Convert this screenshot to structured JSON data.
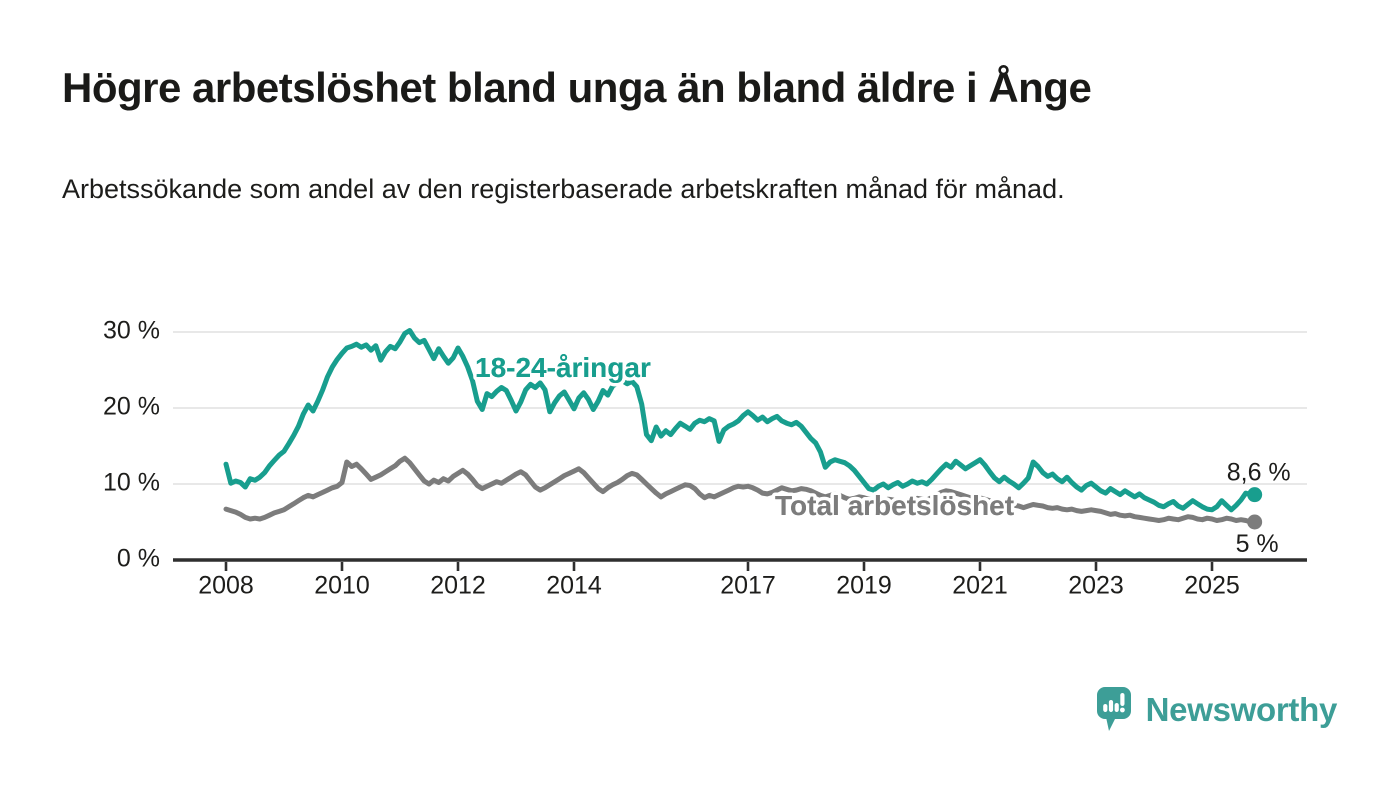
{
  "header": {
    "title": "Högre arbetslöshet bland unga än bland äldre i Ånge",
    "subtitle": "Arbetssökande som andel av den registerbaserade arbetskraften månad för månad."
  },
  "chart_data": {
    "type": "line",
    "title": "Högre arbetslöshet bland unga än bland äldre i Ånge",
    "subtitle": "Arbetssökande som andel av den registerbaserade arbetskraften månad för månad.",
    "unit": "%",
    "x_start": "2008-01",
    "x_end": "2025-09",
    "points_per_year": 12,
    "ylim": [
      0,
      30
    ],
    "grid": "horizontal",
    "legend_position": "inline-labels",
    "y_ticks": [
      {
        "label": "0 %",
        "value": 0
      },
      {
        "label": "10 %",
        "value": 10
      },
      {
        "label": "20 %",
        "value": 20
      },
      {
        "label": "30 %",
        "value": 30
      }
    ],
    "x_ticks": [
      {
        "label": "2008",
        "year": 2008
      },
      {
        "label": "2010",
        "year": 2010
      },
      {
        "label": "2012",
        "year": 2012
      },
      {
        "label": "2014",
        "year": 2014
      },
      {
        "label": "2017",
        "year": 2017
      },
      {
        "label": "2019",
        "year": 2019
      },
      {
        "label": "2021",
        "year": 2021
      },
      {
        "label": "2023",
        "year": 2023
      },
      {
        "label": "2025",
        "year": 2025
      }
    ],
    "series": [
      {
        "name": "18-24-åringar",
        "color": "#189e8e",
        "end_label": "8,6 %",
        "end_value": 8.6,
        "values": [
          12.6,
          10.1,
          10.4,
          10.2,
          9.6,
          10.7,
          10.5,
          10.9,
          11.5,
          12.4,
          13.1,
          13.8,
          14.3,
          15.3,
          16.4,
          17.6,
          19.2,
          20.4,
          19.6,
          20.9,
          22.4,
          24.1,
          25.4,
          26.4,
          27.2,
          27.9,
          28.1,
          28.4,
          28.0,
          28.3,
          27.6,
          28.2,
          26.3,
          27.4,
          28.1,
          27.8,
          28.7,
          29.8,
          30.2,
          29.2,
          28.6,
          28.9,
          27.7,
          26.5,
          27.8,
          26.8,
          25.9,
          26.6,
          27.9,
          26.8,
          25.4,
          23.6,
          20.9,
          19.8,
          21.9,
          21.5,
          22.2,
          22.7,
          22.3,
          21.0,
          19.6,
          20.8,
          22.4,
          23.1,
          22.7,
          23.3,
          22.4,
          19.5,
          20.7,
          21.6,
          22.1,
          21.0,
          19.9,
          21.3,
          22.0,
          21.1,
          19.8,
          20.9,
          22.3,
          21.7,
          22.9,
          23.3,
          23.6,
          23.2,
          23.5,
          22.8,
          20.5,
          16.5,
          15.7,
          17.5,
          16.3,
          17.0,
          16.5,
          17.3,
          18.0,
          17.6,
          17.2,
          18.0,
          18.4,
          18.2,
          18.6,
          18.3,
          15.6,
          17.1,
          17.6,
          17.9,
          18.3,
          19.0,
          19.5,
          19.0,
          18.4,
          18.8,
          18.2,
          18.6,
          18.9,
          18.3,
          18.0,
          17.8,
          18.1,
          17.6,
          16.8,
          16.0,
          15.4,
          14.2,
          12.2,
          12.9,
          13.2,
          13.0,
          12.8,
          12.4,
          11.8,
          11.0,
          10.2,
          9.4,
          9.2,
          9.7,
          10.0,
          9.5,
          9.9,
          10.2,
          9.7,
          10.0,
          10.4,
          10.1,
          10.3,
          10.0,
          10.6,
          11.3,
          12.0,
          12.6,
          12.2,
          13.0,
          12.5,
          12.0,
          12.4,
          12.8,
          13.2,
          12.5,
          11.6,
          10.8,
          10.3,
          10.9,
          10.4,
          10.0,
          9.5,
          10.1,
          10.8,
          12.9,
          12.3,
          11.5,
          11.0,
          11.3,
          10.7,
          10.3,
          10.9,
          10.2,
          9.6,
          9.2,
          9.8,
          10.1,
          9.6,
          9.1,
          8.8,
          9.4,
          9.0,
          8.6,
          9.1,
          8.7,
          8.3,
          8.7,
          8.2,
          7.9,
          7.6,
          7.2,
          7.0,
          7.4,
          7.7,
          7.1,
          6.8,
          7.3,
          7.8,
          7.4,
          7.0,
          6.7,
          6.6,
          7.0,
          7.8,
          7.2,
          6.6,
          7.2,
          7.9,
          8.8,
          8.6
        ]
      },
      {
        "name": "Total arbetslöshet",
        "color": "#7c7c7c",
        "end_label": "5 %",
        "end_value": 5.0,
        "values": [
          6.7,
          6.5,
          6.3,
          6.0,
          5.6,
          5.4,
          5.5,
          5.4,
          5.6,
          5.9,
          6.2,
          6.4,
          6.6,
          7.0,
          7.4,
          7.8,
          8.2,
          8.5,
          8.3,
          8.6,
          8.9,
          9.2,
          9.5,
          9.7,
          10.2,
          12.9,
          12.3,
          12.6,
          12.0,
          11.3,
          10.6,
          10.9,
          11.2,
          11.6,
          12.0,
          12.4,
          13.0,
          13.4,
          12.8,
          12.0,
          11.2,
          10.4,
          10.0,
          10.5,
          10.2,
          10.7,
          10.4,
          11.0,
          11.4,
          11.8,
          11.3,
          10.6,
          9.8,
          9.4,
          9.7,
          10.0,
          10.3,
          10.1,
          10.5,
          10.9,
          11.3,
          11.6,
          11.2,
          10.4,
          9.6,
          9.2,
          9.5,
          9.9,
          10.3,
          10.7,
          11.1,
          11.4,
          11.7,
          12.0,
          11.5,
          10.8,
          10.1,
          9.4,
          9.0,
          9.5,
          9.9,
          10.2,
          10.6,
          11.1,
          11.4,
          11.2,
          10.6,
          10.0,
          9.4,
          8.8,
          8.3,
          8.7,
          9.0,
          9.3,
          9.6,
          9.9,
          9.8,
          9.4,
          8.7,
          8.2,
          8.5,
          8.3,
          8.6,
          8.9,
          9.2,
          9.5,
          9.7,
          9.6,
          9.7,
          9.5,
          9.2,
          8.8,
          8.7,
          8.9,
          9.2,
          9.5,
          9.3,
          9.1,
          9.2,
          9.4,
          9.3,
          9.1,
          8.8,
          8.5,
          8.3,
          8.5,
          8.7,
          8.5,
          8.2,
          8.0,
          8.1,
          8.3,
          8.2,
          8.0,
          7.9,
          7.7,
          7.8,
          8.0,
          7.9,
          7.7,
          7.6,
          7.7,
          7.9,
          8.1,
          8.0,
          7.9,
          8.2,
          8.6,
          8.9,
          9.1,
          9.0,
          8.8,
          8.6,
          8.4,
          8.2,
          8.3,
          8.2,
          8.0,
          7.8,
          7.5,
          7.3,
          7.2,
          7.0,
          7.2,
          7.1,
          6.9,
          7.1,
          7.3,
          7.2,
          7.1,
          6.9,
          6.8,
          6.9,
          6.7,
          6.6,
          6.7,
          6.5,
          6.4,
          6.5,
          6.6,
          6.5,
          6.4,
          6.2,
          6.0,
          6.1,
          5.9,
          5.8,
          5.9,
          5.7,
          5.6,
          5.5,
          5.4,
          5.3,
          5.2,
          5.3,
          5.5,
          5.4,
          5.3,
          5.5,
          5.7,
          5.6,
          5.4,
          5.3,
          5.5,
          5.4,
          5.2,
          5.3,
          5.5,
          5.4,
          5.2,
          5.3,
          5.2,
          5.0
        ]
      }
    ],
    "colors": {
      "youth_line": "#189e8e",
      "total_line": "#7c7c7c",
      "gridline": "#e0e0e0",
      "axis": "#2f2f2f",
      "text": "#1d1d1b"
    }
  },
  "branding": {
    "logo_text": "Newsworthy",
    "logo_color": "#3d9e97"
  }
}
